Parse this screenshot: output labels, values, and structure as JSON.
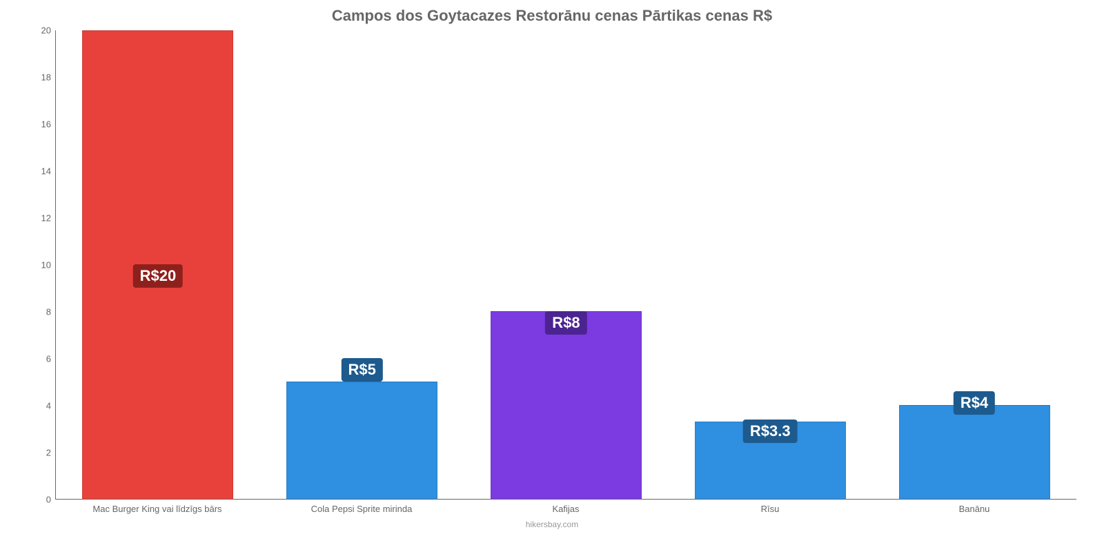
{
  "chart": {
    "type": "bar",
    "title": "Campos dos Goytacazes Restorānu cenas Pārtikas cenas R$",
    "title_fontsize": 22,
    "title_color": "#666666",
    "background_color": "#ffffff",
    "axis_color": "#666666",
    "label_fontsize": 13,
    "label_color": "#666666",
    "ylim": [
      0,
      20
    ],
    "ytick_step": 2,
    "yticks": [
      0,
      2,
      4,
      6,
      8,
      10,
      12,
      14,
      16,
      18,
      20
    ],
    "bar_width": 0.74,
    "categories": [
      "Mac Burger King vai līdzīgs bārs",
      "Cola Pepsi Sprite mirinda",
      "Kafijas",
      "Rīsu",
      "Banānu"
    ],
    "values": [
      20,
      5,
      8,
      3.3,
      4
    ],
    "value_labels": [
      "R$20",
      "R$5",
      "R$8",
      "R$3.3",
      "R$4"
    ],
    "bar_colors": [
      "#e8413c",
      "#2f8fe0",
      "#7b3be0",
      "#2f8fe0",
      "#2f8fe0"
    ],
    "badge_bg_colors": [
      "#8e201c",
      "#1d5a8e",
      "#4c2491",
      "#1d5a8e",
      "#1d5a8e"
    ],
    "badge_text_color": "#ffffff",
    "badge_fontsize": 22,
    "badge_offsets_pct": [
      45,
      25,
      35,
      12,
      18
    ],
    "attribution": "hikersbay.com",
    "attribution_color": "#999999"
  }
}
